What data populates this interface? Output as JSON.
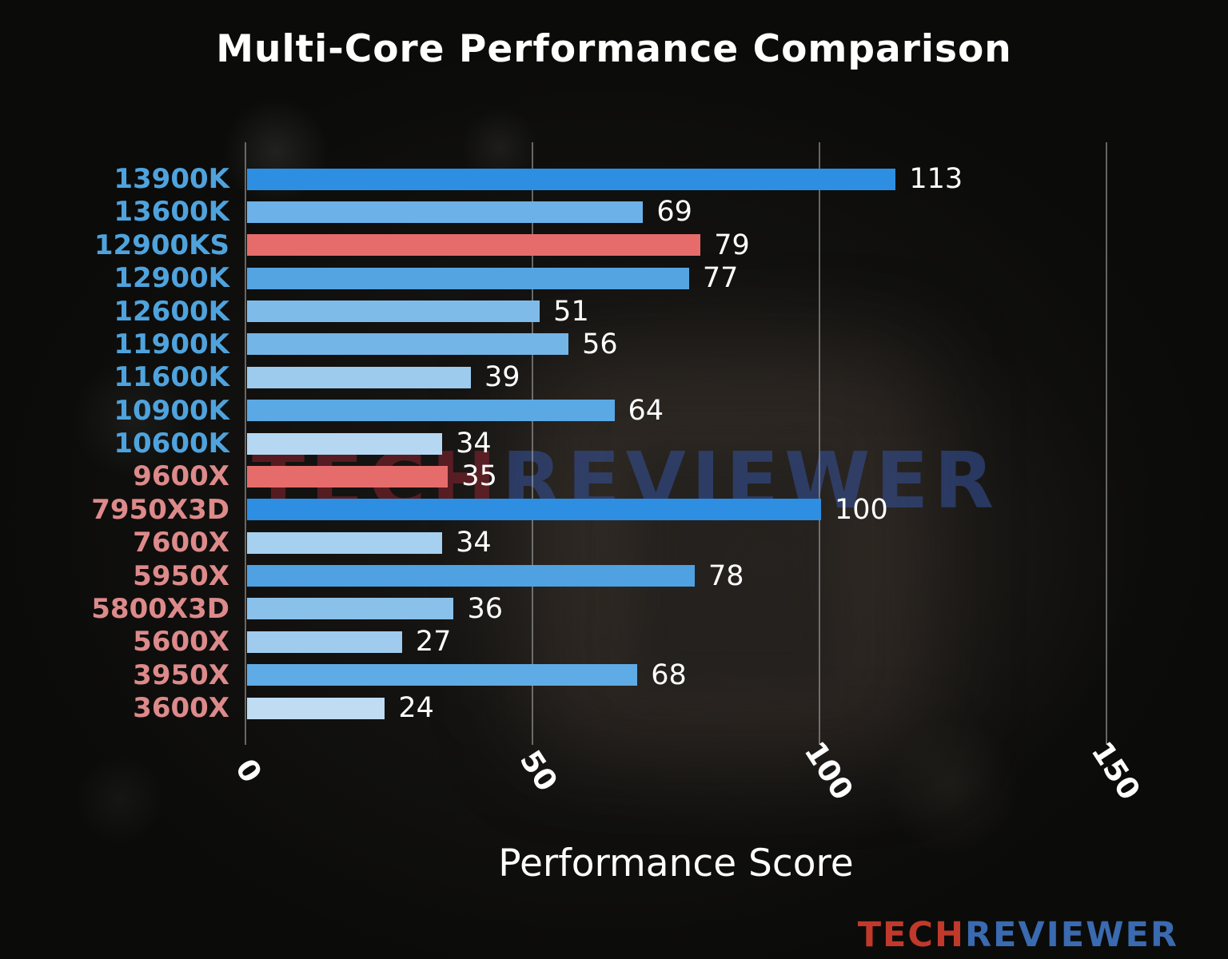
{
  "title": "Multi-Core Performance Comparison",
  "watermark": {
    "tech": "TECH",
    "reviewer": "REVIEWER"
  },
  "logo": {
    "tech": "TECH",
    "reviewer": "REVIEWER"
  },
  "colors": {
    "watermark_tech": "#8c2430",
    "watermark_reviewer": "#35539e",
    "logo_tech": "#c0392b",
    "logo_reviewer": "#3a6ab0"
  },
  "chart_data": {
    "type": "bar",
    "orientation": "horizontal",
    "title": "Multi-Core Performance Comparison",
    "xlabel": "Performance Score",
    "ylabel": "",
    "xlim": [
      0,
      150
    ],
    "xticks": [
      0,
      50,
      100,
      150
    ],
    "grid": true,
    "legend": false,
    "categories": [
      "13900K",
      "13600K",
      "12900KS",
      "12900K",
      "12600K",
      "11900K",
      "11600K",
      "10900K",
      "10600K",
      "9600X",
      "7950X3D",
      "7600X",
      "5950X",
      "5800X3D",
      "5600X",
      "3950X",
      "3600X"
    ],
    "values": [
      113,
      69,
      79,
      77,
      51,
      56,
      39,
      64,
      34,
      35,
      100,
      34,
      78,
      36,
      27,
      68,
      24
    ],
    "bar_colors": [
      "#2d8ee2",
      "#6cb1e8",
      "#e66c6c",
      "#55a4e2",
      "#7fbbe9",
      "#74b5e7",
      "#9ccbee",
      "#5aa8e4",
      "#b5d7f1",
      "#e66c6c",
      "#2d8ee2",
      "#a6d0ef",
      "#4fa1e1",
      "#8ac1ea",
      "#9fccee",
      "#5fabe5",
      "#bfdcf3"
    ],
    "label_colors": [
      "#4fa3dd",
      "#4fa3dd",
      "#4fa3dd",
      "#4fa3dd",
      "#4fa3dd",
      "#4fa3dd",
      "#4fa3dd",
      "#4fa3dd",
      "#4fa3dd",
      "#dd8a8a",
      "#dd8a8a",
      "#dd8a8a",
      "#dd8a8a",
      "#dd8a8a",
      "#dd8a8a",
      "#dd8a8a",
      "#dd8a8a"
    ],
    "value_label_color": "#ffffff",
    "tick_label_color": "#ffffff",
    "grid_color": "#afafaf"
  }
}
